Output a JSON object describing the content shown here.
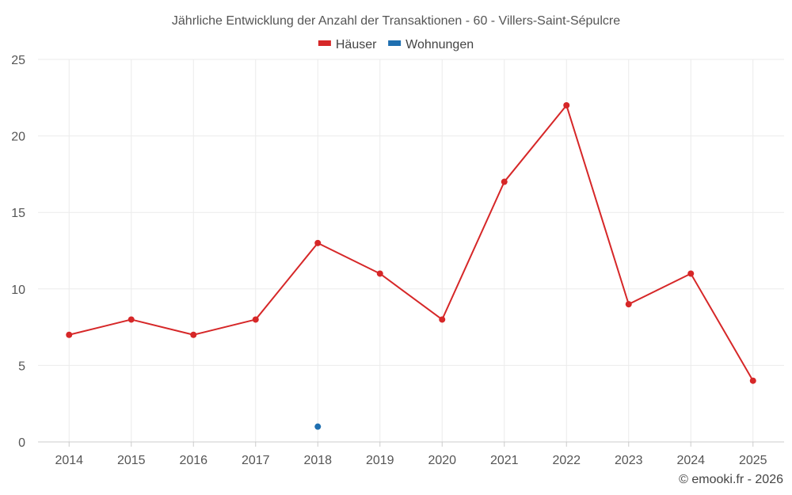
{
  "chart_data": {
    "type": "line",
    "title": "Jährliche Entwicklung der Anzahl der Transaktionen - 60 - Villers-Saint-Sépulcre",
    "xlabel": "",
    "ylabel": "",
    "categories": [
      "2014",
      "2015",
      "2016",
      "2017",
      "2018",
      "2019",
      "2020",
      "2021",
      "2022",
      "2023",
      "2024",
      "2025"
    ],
    "ylim": [
      0,
      25
    ],
    "yticks": [
      0,
      5,
      10,
      15,
      20,
      25
    ],
    "grid": true,
    "legend_position": "top-center",
    "series": [
      {
        "name": "Häuser",
        "color": "#d62728",
        "values": [
          7,
          8,
          7,
          8,
          13,
          11,
          8,
          17,
          22,
          9,
          11,
          4
        ]
      },
      {
        "name": "Wohnungen",
        "color": "#1f6fb0",
        "values": [
          null,
          null,
          null,
          null,
          1,
          null,
          null,
          null,
          null,
          null,
          null,
          null
        ]
      }
    ]
  },
  "credit": "© emooki.fr - 2026"
}
